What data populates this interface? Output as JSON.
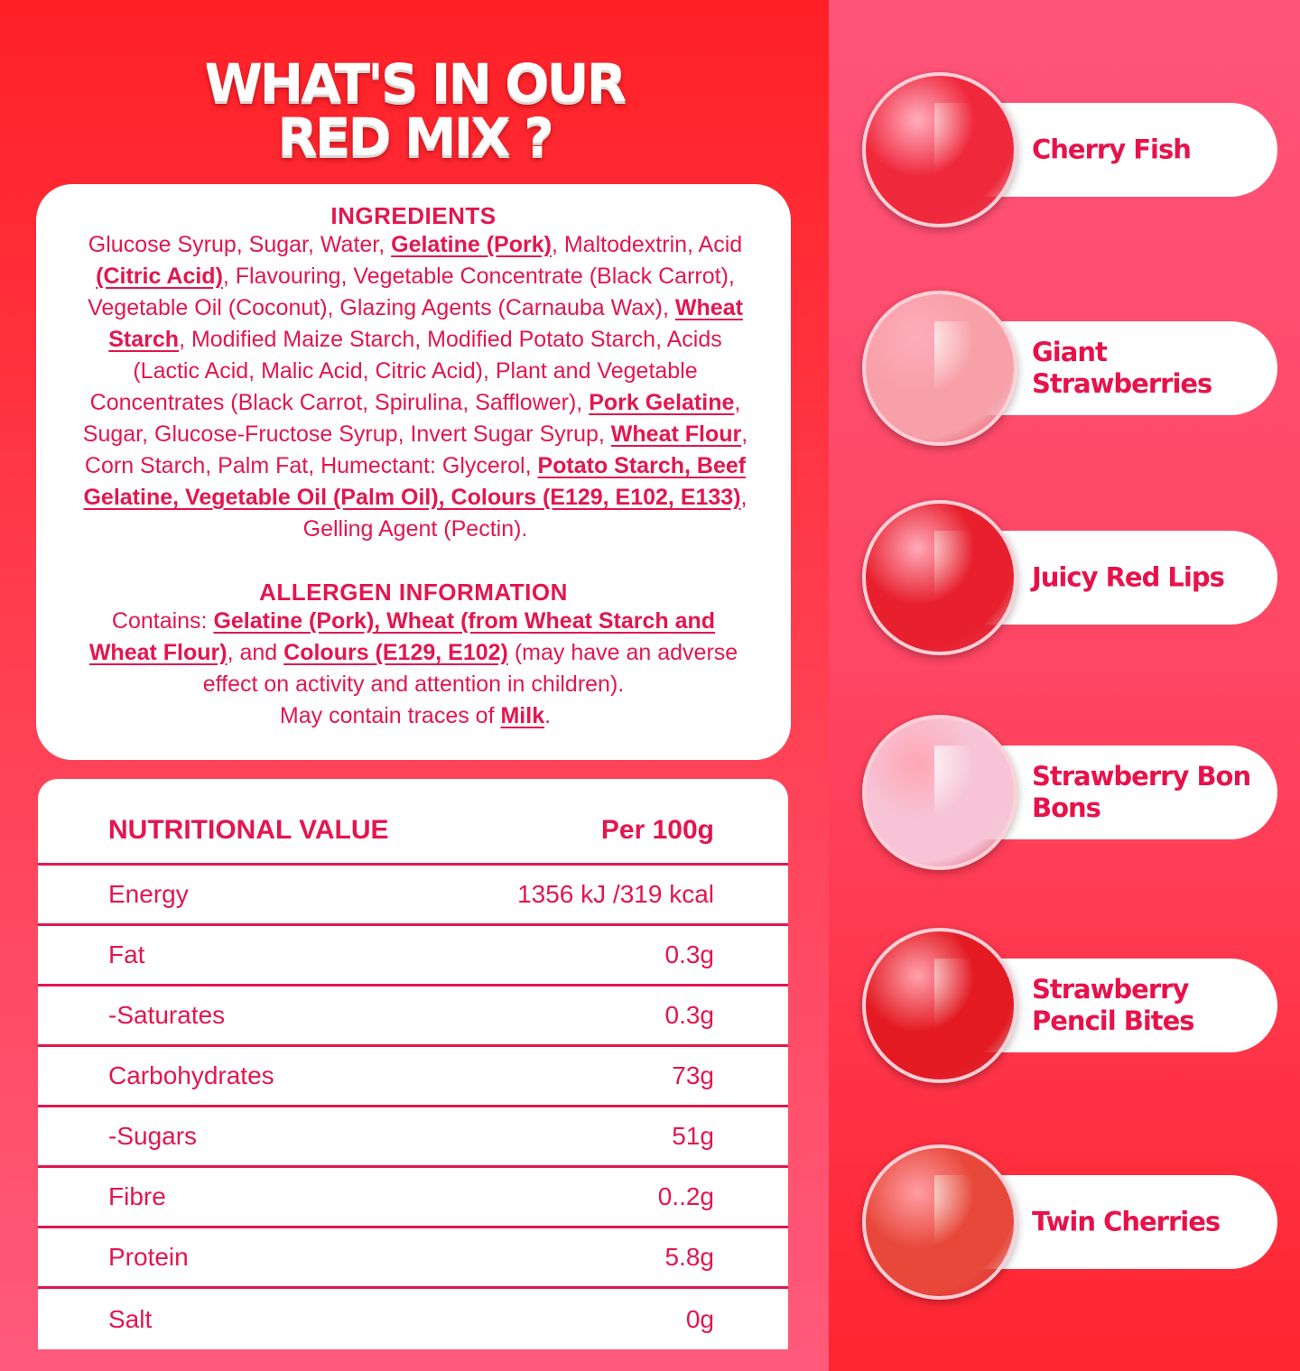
{
  "title": {
    "line1": "WHAT'S IN OUR",
    "line2": "RED MIX ?"
  },
  "ingredients": {
    "heading": "INGREDIENTS",
    "segments": [
      {
        "t": "Glucose Syrup, Sugar, Water, "
      },
      {
        "t": "Gelatine (Pork)",
        "b": true
      },
      {
        "t": ", Maltodextrin, Acid "
      },
      {
        "t": "(Citric Acid)",
        "b": true
      },
      {
        "t": ", Flavouring, Vegetable Concentrate (Black Carrot), Vegetable Oil (Coconut), Glazing Agents (Carnauba Wax), "
      },
      {
        "t": "Wheat Starch",
        "b": true
      },
      {
        "t": ", Modified Maize Starch, Modified Potato Starch, Acids (Lactic Acid, Malic Acid, Citric Acid), Plant and Vegetable Concentrates (Black Carrot, Spirulina, Safflower), "
      },
      {
        "t": "Pork Gelatine",
        "b": true
      },
      {
        "t": ", Sugar, Glucose-Fructose Syrup, Invert Sugar Syrup, "
      },
      {
        "t": "Wheat Flour",
        "b": true
      },
      {
        "t": ", Corn Starch, Palm Fat, Humectant: Glycerol, "
      },
      {
        "t": "Potato Starch, Beef Gelatine, Vegetable Oil (Palm Oil), Colours (E129, E102, E133)",
        "b": true
      },
      {
        "t": ", Gelling Agent (Pectin)."
      }
    ]
  },
  "allergen": {
    "heading": "ALLERGEN INFORMATION",
    "segments": [
      {
        "t": "Contains: "
      },
      {
        "t": "Gelatine (Pork), Wheat (from Wheat Starch and Wheat Flour)",
        "b": true
      },
      {
        "t": ", and "
      },
      {
        "t": "Colours (E129, E102)",
        "b": true
      },
      {
        "t": " (may have an adverse effect on activity and attention in children)."
      }
    ],
    "traces": [
      {
        "t": "May contain traces of "
      },
      {
        "t": "Milk",
        "b": true
      },
      {
        "t": "."
      }
    ]
  },
  "nutrition": {
    "header": {
      "label": "NUTRITIONAL VALUE",
      "value": "Per 100g"
    },
    "rows": [
      {
        "label": "Energy",
        "value": "1356 kJ /319 kcal"
      },
      {
        "label": "Fat",
        "value": "0.3g"
      },
      {
        "label": "-Saturates",
        "value": "0.3g"
      },
      {
        "label": "Carbohydrates",
        "value": "73g"
      },
      {
        "label": "-Sugars",
        "value": "51g"
      },
      {
        "label": "Fibre",
        "value": "0..2g"
      },
      {
        "label": "Protein",
        "value": "5.8g"
      },
      {
        "label": "Salt",
        "value": "0g"
      }
    ]
  },
  "mix": [
    {
      "name": "Cherry Fish",
      "color": "#f0283c"
    },
    {
      "name": "Giant Strawberries",
      "color": "#f7a0a8"
    },
    {
      "name": "Juicy Red Lips",
      "color": "#e8202e"
    },
    {
      "name": "Strawberry Bon Bons",
      "color": "#f6c4d6"
    },
    {
      "name": "Strawberry Pencil Bites",
      "color": "#e31a22"
    },
    {
      "name": "Twin Cherries",
      "color": "#e8483a"
    }
  ]
}
